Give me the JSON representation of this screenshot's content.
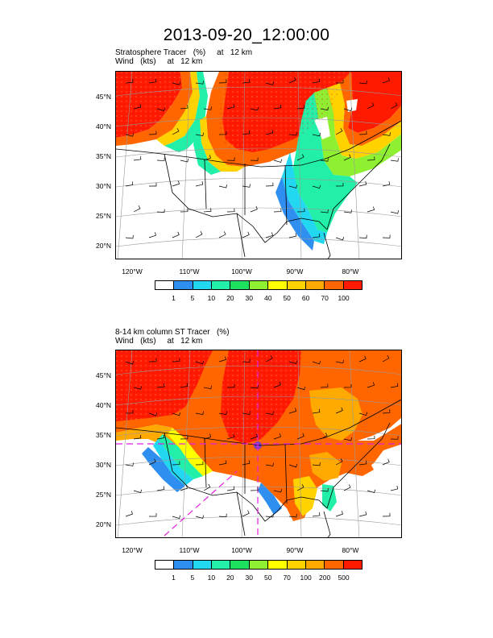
{
  "title": "2013-09-20_12:00:00",
  "panels": [
    {
      "line1": "Stratosphere Tracer   (%)     at   12 km",
      "line2": "Wind   (kts)     at   12 km",
      "lat_labels": [
        "45°N",
        "40°N",
        "35°N",
        "30°N",
        "25°N",
        "20°N"
      ],
      "lon_labels": [
        "120°W",
        "110°W",
        "100°W",
        "90°W",
        "80°W"
      ],
      "legend_labels": [
        "1",
        "5",
        "10",
        "20",
        "30",
        "40",
        "50",
        "60",
        "70",
        "100"
      ],
      "legend_colors": [
        "#ffffff",
        "#2f8ff0",
        "#22d8f0",
        "#22f0a8",
        "#1ee060",
        "#8ef030",
        "#ffff00",
        "#ffd200",
        "#ffaa00",
        "#ff6600",
        "#ff1a00"
      ]
    },
    {
      "line1": "8-14 km column ST Tracer   (%)",
      "line2": "Wind   (kts)     at   12 km",
      "lat_labels": [
        "45°N",
        "40°N",
        "35°N",
        "30°N",
        "25°N",
        "20°N"
      ],
      "lon_labels": [
        "120°W",
        "110°W",
        "100°W",
        "90°W",
        "80°W"
      ],
      "legend_labels": [
        "1",
        "5",
        "10",
        "20",
        "30",
        "50",
        "70",
        "100",
        "200",
        "500"
      ],
      "legend_colors": [
        "#ffffff",
        "#2f8ff0",
        "#22d8f0",
        "#22f0a8",
        "#1ee060",
        "#8ef030",
        "#ffff00",
        "#ffd200",
        "#ffaa00",
        "#ff6600",
        "#ff1a00"
      ]
    }
  ]
}
